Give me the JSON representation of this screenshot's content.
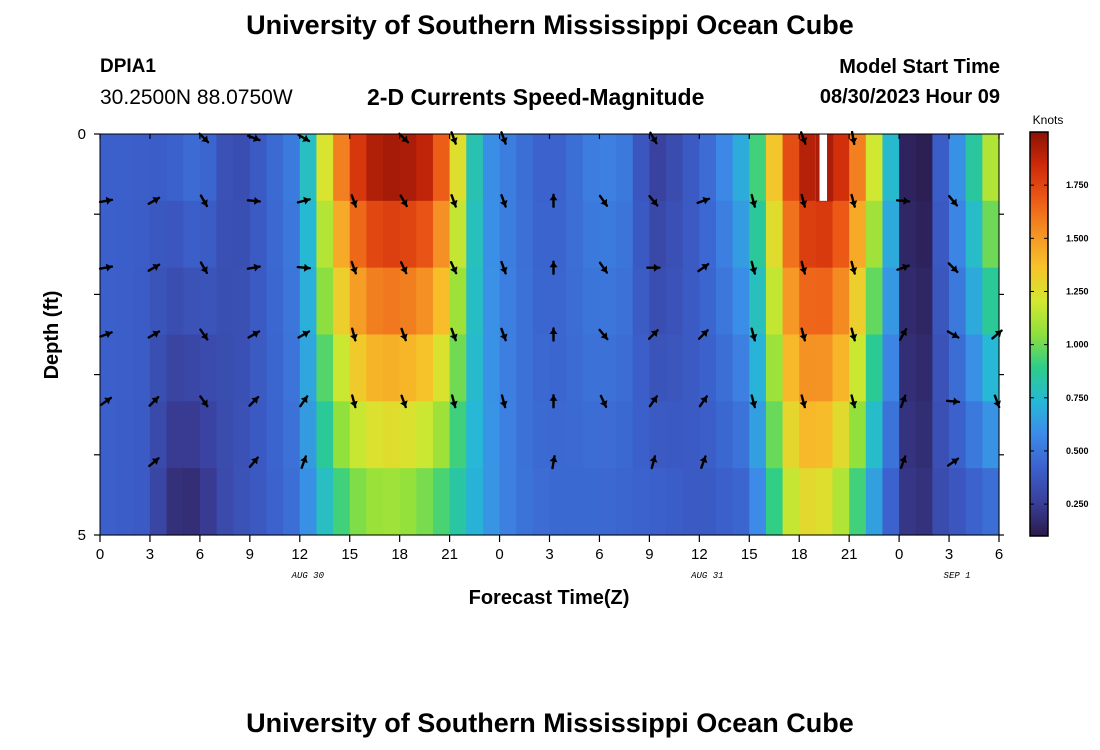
{
  "header": {
    "title": "University of Southern Mississippi Ocean Cube",
    "station_id": "DPIA1",
    "coords": "30.2500N  88.0750W",
    "subtitle": "2-D Currents Speed-Magnitude",
    "model_start_label": "Model Start Time",
    "model_start_value": "08/30/2023 Hour 09"
  },
  "footer": {
    "title": "University of Southern Mississippi Ocean Cube"
  },
  "colors": {
    "palette": [
      "#2a1a4a",
      "#3a3f9a",
      "#3b60cc",
      "#3d8ae8",
      "#26b8d6",
      "#2ccd8a",
      "#8fe03c",
      "#d4e830",
      "#f7c22a",
      "#f59224",
      "#ec5a16",
      "#cf2a0a",
      "#8a1206"
    ],
    "gap": "#ffffff",
    "arrow": "#000000"
  },
  "chart_data": {
    "type": "heatmap",
    "title": "2-D Currents Speed-Magnitude",
    "xlabel": "Forecast Time(Z)",
    "ylabel": "Depth (ft)",
    "units": "Knots",
    "color_range": [
      0.1,
      2.0
    ],
    "colorbar_ticks": [
      "0.250",
      "0.500",
      "0.750",
      "1.000",
      "1.250",
      "1.500",
      "1.750"
    ],
    "colorbar_tick_values": [
      0.25,
      0.5,
      0.75,
      1.0,
      1.25,
      1.5,
      1.75
    ],
    "x_range": [
      0,
      54
    ],
    "x_ticks": [
      0,
      3,
      6,
      9,
      12,
      15,
      18,
      21,
      24,
      27,
      30,
      33,
      36,
      39,
      42,
      45,
      48,
      51,
      54
    ],
    "x_tick_labels": [
      "0",
      "3",
      "6",
      "9",
      "12",
      "15",
      "18",
      "21",
      "0",
      "3",
      "6",
      "9",
      "12",
      "15",
      "18",
      "21",
      "0",
      "3",
      "6"
    ],
    "date_labels": [
      {
        "text": "AUG 30",
        "hour": 12
      },
      {
        "text": "AUG 31",
        "hour": 36
      },
      {
        "text": "SEP 1",
        "hour": 51
      }
    ],
    "y_range": [
      0,
      5
    ],
    "y_tick_labels": [
      "0",
      "5"
    ],
    "depth_layers": [
      0,
      1,
      2,
      3,
      4,
      5
    ],
    "speed_profile_surface": [
      [
        0,
        0.42
      ],
      [
        4,
        0.4
      ],
      [
        6,
        0.48
      ],
      [
        8,
        0.3
      ],
      [
        10,
        0.42
      ],
      [
        12,
        0.55
      ],
      [
        13,
        1.0
      ],
      [
        14,
        1.45
      ],
      [
        15,
        1.7
      ],
      [
        16,
        1.9
      ],
      [
        18,
        1.95
      ],
      [
        20,
        1.85
      ],
      [
        21,
        1.5
      ],
      [
        22,
        1.0
      ],
      [
        23,
        0.62
      ],
      [
        25,
        0.5
      ],
      [
        27,
        0.4
      ],
      [
        30,
        0.55
      ],
      [
        32,
        0.5
      ],
      [
        33,
        0.25
      ],
      [
        35,
        0.35
      ],
      [
        37,
        0.5
      ],
      [
        39,
        0.75
      ],
      [
        40,
        1.1
      ],
      [
        41,
        1.6
      ],
      [
        42,
        1.85
      ],
      [
        43,
        1.95
      ],
      [
        44,
        1.9
      ],
      [
        45,
        1.75
      ],
      [
        46,
        1.4
      ],
      [
        47,
        1.0
      ],
      [
        48,
        0.5
      ],
      [
        48.5,
        0.14
      ],
      [
        49.5,
        0.12
      ],
      [
        50,
        0.3
      ],
      [
        51,
        0.5
      ],
      [
        52,
        0.7
      ],
      [
        53,
        1.0
      ],
      [
        54,
        1.25
      ]
    ],
    "speed_profile_deep": [
      [
        0,
        0.42
      ],
      [
        3,
        0.38
      ],
      [
        4,
        0.2
      ],
      [
        6,
        0.18
      ],
      [
        7,
        0.3
      ],
      [
        10,
        0.4
      ],
      [
        12,
        0.5
      ],
      [
        13,
        0.7
      ],
      [
        15,
        1.0
      ],
      [
        17,
        1.1
      ],
      [
        19,
        1.05
      ],
      [
        21,
        0.9
      ],
      [
        23,
        0.65
      ],
      [
        25,
        0.5
      ],
      [
        27,
        0.45
      ],
      [
        30,
        0.45
      ],
      [
        33,
        0.42
      ],
      [
        36,
        0.38
      ],
      [
        39,
        0.45
      ],
      [
        40,
        0.7
      ],
      [
        41,
        1.1
      ],
      [
        42,
        1.25
      ],
      [
        43,
        1.3
      ],
      [
        44,
        1.2
      ],
      [
        45,
        1.05
      ],
      [
        46,
        0.8
      ],
      [
        47,
        0.5
      ],
      [
        48,
        0.35
      ],
      [
        48.5,
        0.22
      ],
      [
        49.5,
        0.2
      ],
      [
        50,
        0.3
      ],
      [
        52,
        0.4
      ],
      [
        54,
        0.5
      ]
    ],
    "missing": [
      {
        "hour": 43,
        "depth_layer": 0
      }
    ],
    "arrow_directions_deg": [
      [
        null,
        null,
        135,
        110,
        120,
        null,
        135,
        160,
        160,
        null,
        null,
        150,
        null,
        null,
        160,
        170,
        null,
        null,
        null
      ],
      [
        80,
        60,
        150,
        95,
        75,
        160,
        150,
        160,
        160,
        0,
        145,
        140,
        70,
        165,
        165,
        165,
        95,
        140,
        null
      ],
      [
        80,
        60,
        150,
        80,
        95,
        160,
        155,
        155,
        160,
        0,
        145,
        90,
        55,
        165,
        165,
        165,
        70,
        135,
        null
      ],
      [
        70,
        60,
        145,
        60,
        60,
        165,
        160,
        160,
        160,
        0,
        140,
        45,
        45,
        165,
        165,
        165,
        30,
        120,
        50
      ],
      [
        55,
        45,
        145,
        45,
        35,
        165,
        160,
        165,
        165,
        0,
        155,
        35,
        35,
        165,
        165,
        165,
        20,
        95,
        160
      ],
      [
        null,
        50,
        null,
        40,
        20,
        null,
        null,
        null,
        null,
        10,
        null,
        15,
        20,
        null,
        null,
        null,
        20,
        55,
        null
      ]
    ]
  }
}
